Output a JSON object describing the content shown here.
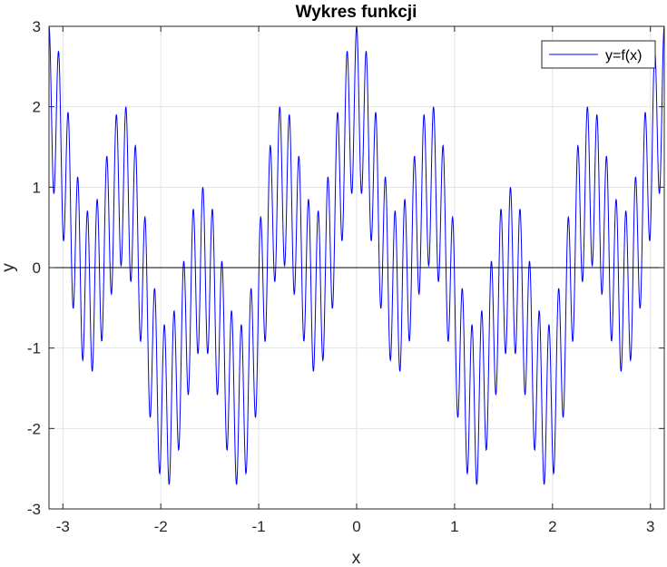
{
  "chart_data": {
    "type": "line",
    "title": "Wykres funkcji",
    "xlabel": "x",
    "ylabel": "y",
    "xlim": [
      -3.14159,
      3.14159
    ],
    "ylim": [
      -3,
      3
    ],
    "xticks": [
      -3,
      -2,
      -1,
      0,
      1,
      2,
      3
    ],
    "yticks": [
      -3,
      -2,
      -1,
      0,
      1,
      2,
      3
    ],
    "x_tick_labels": [
      "-3",
      "-2",
      "-1",
      "0",
      "1",
      "2",
      "3"
    ],
    "y_tick_labels": [
      "-3",
      "-2",
      "-1",
      "0",
      "1",
      "2",
      "3"
    ],
    "grid": true,
    "zero_line": true,
    "legend": {
      "position": "top-right",
      "entries": [
        "y=f(x)"
      ]
    },
    "series": [
      {
        "name": "y=f(x)",
        "color": "#0000ff",
        "formula": "cos(2x) + cos(8x) + cos(64x)",
        "x_range": [
          -3.14159,
          3.14159
        ],
        "sample_count": 2000
      }
    ]
  }
}
